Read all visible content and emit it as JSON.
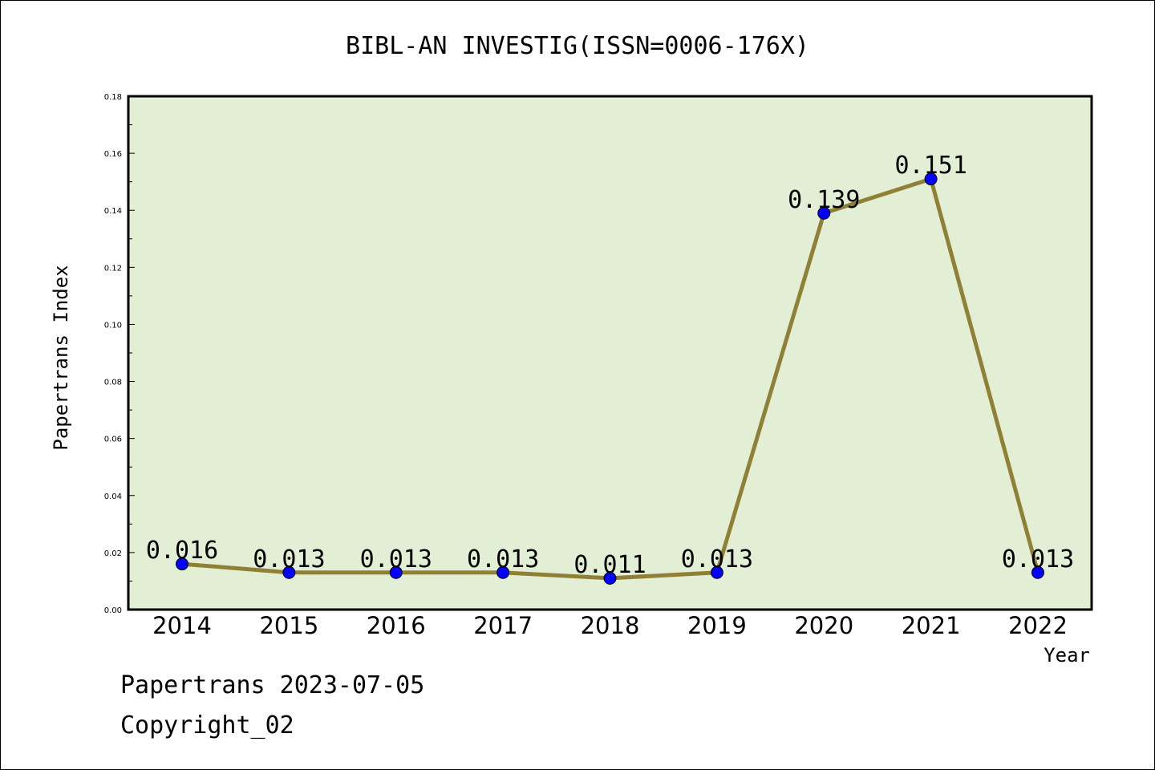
{
  "chart_data": {
    "type": "line",
    "title": "BIBL-AN INVESTIG(ISSN=0006-176X)",
    "xlabel": "Year",
    "ylabel": "Papertrans Index",
    "categories": [
      "2014",
      "2015",
      "2016",
      "2017",
      "2018",
      "2019",
      "2020",
      "2021",
      "2022"
    ],
    "values": [
      0.016,
      0.013,
      0.013,
      0.013,
      0.011,
      0.013,
      0.139,
      0.151,
      0.013
    ],
    "data_labels": [
      "0.016",
      "0.013",
      "0.013",
      "0.013",
      "0.011",
      "0.013",
      "0.139",
      "0.151",
      "0.013"
    ],
    "ylim": [
      0,
      0.18
    ],
    "yticks": [
      "0.00",
      "0.02",
      "0.04",
      "0.06",
      "0.08",
      "0.10",
      "0.12",
      "0.14",
      "0.16",
      "0.18"
    ],
    "grid": false,
    "colors": {
      "plot_background": "#e2efd5",
      "line": "#8f8035",
      "marker": "#0000ff"
    }
  },
  "footer": {
    "line1": "Papertrans 2023-07-05",
    "line2": "Copyright_02"
  }
}
